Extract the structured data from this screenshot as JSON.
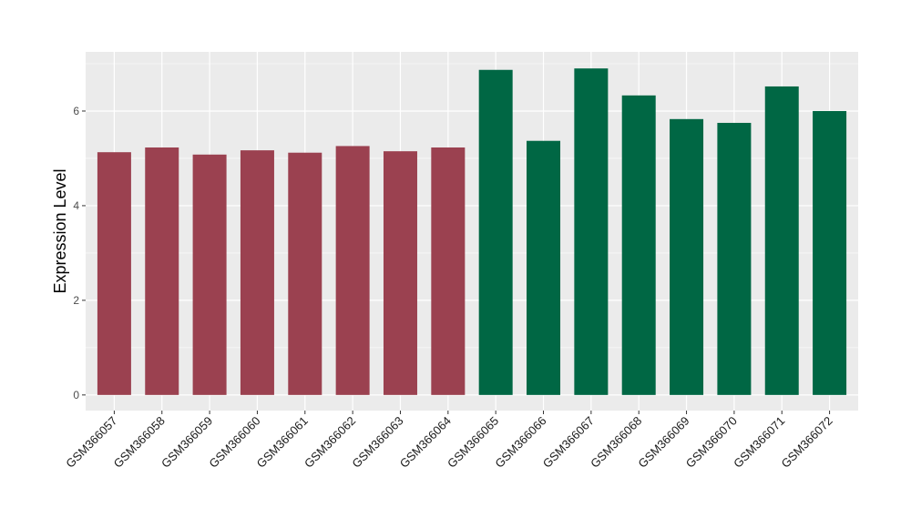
{
  "chart_data": {
    "type": "bar",
    "title": "",
    "xlabel": "",
    "ylabel": "Expression Level",
    "ylim": [
      -0.33,
      7.25
    ],
    "yticks": [
      0,
      2,
      4,
      6
    ],
    "grid": true,
    "legend": "none",
    "categories": [
      "GSM366057",
      "GSM366058",
      "GSM366059",
      "GSM366060",
      "GSM366061",
      "GSM366062",
      "GSM366063",
      "GSM366064",
      "GSM366065",
      "GSM366066",
      "GSM366067",
      "GSM366068",
      "GSM366069",
      "GSM366070",
      "GSM366071",
      "GSM366072"
    ],
    "values": [
      5.13,
      5.23,
      5.08,
      5.17,
      5.12,
      5.26,
      5.15,
      5.23,
      6.87,
      5.37,
      6.9,
      6.33,
      5.83,
      5.75,
      6.52,
      6.0
    ],
    "groups": [
      0,
      0,
      0,
      0,
      0,
      0,
      0,
      0,
      1,
      1,
      1,
      1,
      1,
      1,
      1,
      1
    ],
    "group_colors": [
      "#9b4150",
      "#006744"
    ],
    "panel_color": "#ebebeb"
  }
}
